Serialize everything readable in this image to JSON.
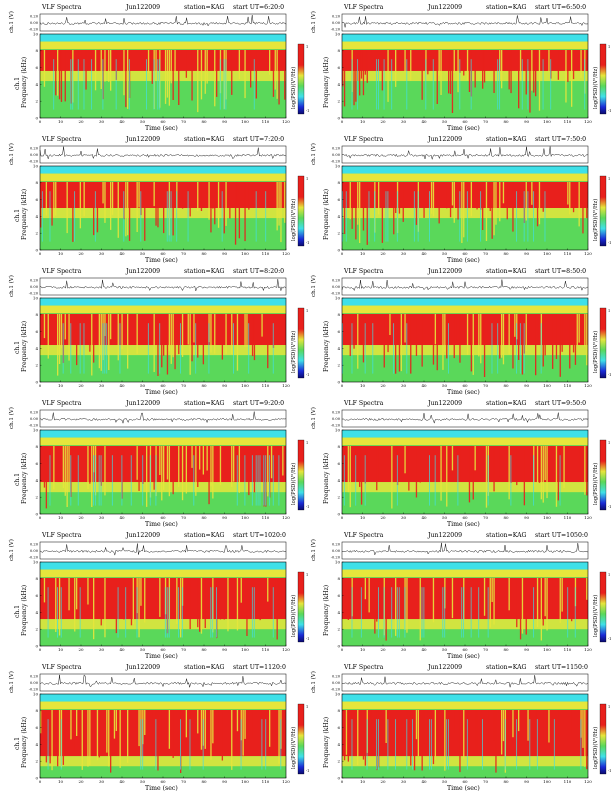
{
  "labels": {
    "spectra": "VLF Spectra",
    "date": "Jun122009",
    "station": "station=KAG",
    "start_ut": "start UT",
    "ch1_amp": "ch.1 (V)",
    "ch1_freq_1": "ch.1",
    "ch1_freq_2": "Frequency (kHz)",
    "freq_only": "Frequency (kHz)",
    "colorbar": "log(PSD)(V²/Hz)",
    "xlabel": "Time (sec)"
  },
  "chart_data": [
    {
      "type": "heatmap",
      "start_time": "=6:20:0",
      "ylabel": "ch.1 Frequency (kHz)",
      "x": [
        0,
        10,
        20,
        30,
        40,
        50,
        60,
        70,
        80,
        90,
        100,
        110,
        120
      ],
      "freq_ticks": [
        0,
        2,
        4,
        6,
        8,
        10
      ],
      "amp_ticks": [
        "0.20",
        "0.00",
        "-0.20"
      ],
      "cbar_ticks": [
        "1",
        "-1"
      ],
      "xlim": [
        0,
        120
      ],
      "ylim": [
        0,
        10
      ]
    },
    {
      "type": "heatmap",
      "start_time": "=6:50:0",
      "ylabel": "Frequency (kHz)",
      "x": [
        0,
        10,
        20,
        30,
        40,
        50,
        60,
        70,
        80,
        90,
        100,
        110,
        120
      ],
      "freq_ticks": [
        0,
        2,
        4,
        6,
        8,
        10
      ],
      "amp_ticks": [
        "0.20",
        "0.00",
        "-0.20"
      ],
      "cbar_ticks": [
        "1",
        "-1"
      ],
      "xlim": [
        0,
        120
      ],
      "ylim": [
        0,
        10
      ]
    },
    {
      "type": "heatmap",
      "start_time": "=7:20:0",
      "ylabel": "ch.1 Frequency (kHz)",
      "x": [
        0,
        10,
        20,
        30,
        40,
        50,
        60,
        70,
        80,
        90,
        100,
        110,
        120
      ],
      "freq_ticks": [
        0,
        2,
        4,
        6,
        8,
        10
      ],
      "amp_ticks": [
        "0.20",
        "0.00",
        "-0.20"
      ],
      "cbar_ticks": [
        "1",
        "-1"
      ],
      "xlim": [
        0,
        120
      ],
      "ylim": [
        0,
        10
      ]
    },
    {
      "type": "heatmap",
      "start_time": "=7:50:0",
      "ylabel": "Frequency (kHz)",
      "x": [
        0,
        10,
        20,
        30,
        40,
        50,
        60,
        70,
        80,
        90,
        100,
        110,
        120
      ],
      "freq_ticks": [
        0,
        2,
        4,
        6,
        8,
        10
      ],
      "amp_ticks": [
        "0.20",
        "0.00",
        "-0.20"
      ],
      "cbar_ticks": [
        "1",
        "-1"
      ],
      "xlim": [
        0,
        120
      ],
      "ylim": [
        0,
        10
      ]
    },
    {
      "type": "heatmap",
      "start_time": "=8:20:0",
      "ylabel": "ch.1 Frequency (kHz)",
      "x": [
        0,
        10,
        20,
        30,
        40,
        50,
        60,
        70,
        80,
        90,
        100,
        110,
        120
      ],
      "freq_ticks": [
        0,
        2,
        4,
        6,
        8,
        10
      ],
      "amp_ticks": [
        "0.20",
        "0.00",
        "-0.20"
      ],
      "cbar_ticks": [
        "1",
        "-1"
      ],
      "xlim": [
        0,
        120
      ],
      "ylim": [
        0,
        10
      ]
    },
    {
      "type": "heatmap",
      "start_time": "=8:50:0",
      "ylabel": "Frequency (kHz)",
      "x": [
        0,
        10,
        20,
        30,
        40,
        50,
        60,
        70,
        80,
        90,
        100,
        110,
        120
      ],
      "freq_ticks": [
        0,
        2,
        4,
        6,
        8,
        10
      ],
      "amp_ticks": [
        "0.20",
        "0.00",
        "-0.20"
      ],
      "cbar_ticks": [
        "1",
        "-1"
      ],
      "xlim": [
        0,
        120
      ],
      "ylim": [
        0,
        10
      ]
    },
    {
      "type": "heatmap",
      "start_time": "=9:20:0",
      "ylabel": "ch.1 Frequency (kHz)",
      "x": [
        0,
        10,
        20,
        30,
        40,
        50,
        60,
        70,
        80,
        90,
        100,
        110,
        120
      ],
      "freq_ticks": [
        0,
        2,
        4,
        6,
        8,
        10
      ],
      "amp_ticks": [
        "0.20",
        "0.00",
        "-0.20"
      ],
      "cbar_ticks": [
        "1",
        "-1"
      ],
      "xlim": [
        0,
        120
      ],
      "ylim": [
        0,
        10
      ]
    },
    {
      "type": "heatmap",
      "start_time": "=9:50:0",
      "ylabel": "Frequency (kHz)",
      "x": [
        0,
        10,
        20,
        30,
        40,
        50,
        60,
        70,
        80,
        90,
        100,
        110,
        120
      ],
      "freq_ticks": [
        0,
        2,
        4,
        6,
        8,
        10
      ],
      "amp_ticks": [
        "0.20",
        "0.00",
        "-0.20"
      ],
      "cbar_ticks": [
        "1",
        "-1"
      ],
      "xlim": [
        0,
        120
      ],
      "ylim": [
        0,
        10
      ]
    },
    {
      "type": "heatmap",
      "start_time": "=1020:0",
      "ylabel": "ch.1 Frequency (kHz)",
      "x": [
        0,
        10,
        20,
        30,
        40,
        50,
        60,
        70,
        80,
        90,
        100,
        110,
        120
      ],
      "freq_ticks": [
        0,
        2,
        4,
        6,
        8,
        10
      ],
      "amp_ticks": [
        "0.20",
        "0.00",
        "-0.20"
      ],
      "cbar_ticks": [
        "1",
        "-1"
      ],
      "xlim": [
        0,
        120
      ],
      "ylim": [
        0,
        10
      ]
    },
    {
      "type": "heatmap",
      "start_time": "=1050:0",
      "ylabel": "Frequency (kHz)",
      "x": [
        0,
        10,
        20,
        30,
        40,
        50,
        60,
        70,
        80,
        90,
        100,
        110,
        120
      ],
      "freq_ticks": [
        0,
        2,
        4,
        6,
        8,
        10
      ],
      "amp_ticks": [
        "0.20",
        "0.00",
        "-0.20"
      ],
      "cbar_ticks": [
        "1",
        "-1"
      ],
      "xlim": [
        0,
        120
      ],
      "ylim": [
        0,
        10
      ]
    },
    {
      "type": "heatmap",
      "start_time": "=1120:0",
      "ylabel": "ch.1 Frequency (kHz)",
      "x": [
        0,
        10,
        20,
        30,
        40,
        50,
        60,
        70,
        80,
        90,
        100,
        110,
        120
      ],
      "freq_ticks": [
        0,
        2,
        4,
        6,
        8,
        10
      ],
      "amp_ticks": [
        "0.20",
        "0.00",
        "-0.20"
      ],
      "cbar_ticks": [
        "1",
        "-1"
      ],
      "xlim": [
        0,
        120
      ],
      "ylim": [
        0,
        10
      ]
    },
    {
      "type": "heatmap",
      "start_time": "=1150:0",
      "ylabel": "Frequency (kHz)",
      "x": [
        0,
        10,
        20,
        30,
        40,
        50,
        60,
        70,
        80,
        90,
        100,
        110,
        120
      ],
      "freq_ticks": [
        0,
        2,
        4,
        6,
        8,
        10
      ],
      "amp_ticks": [
        "0.20",
        "0.00",
        "-0.20"
      ],
      "cbar_ticks": [
        "1",
        "-1"
      ],
      "xlim": [
        0,
        120
      ],
      "ylim": [
        0,
        10
      ]
    }
  ],
  "colors": {
    "low": "#1a2bd6",
    "cyan": "#3fe0e8",
    "green": "#5ad85a",
    "yellow": "#e6e63c",
    "red": "#e8201c",
    "bg": "#ffffff"
  }
}
